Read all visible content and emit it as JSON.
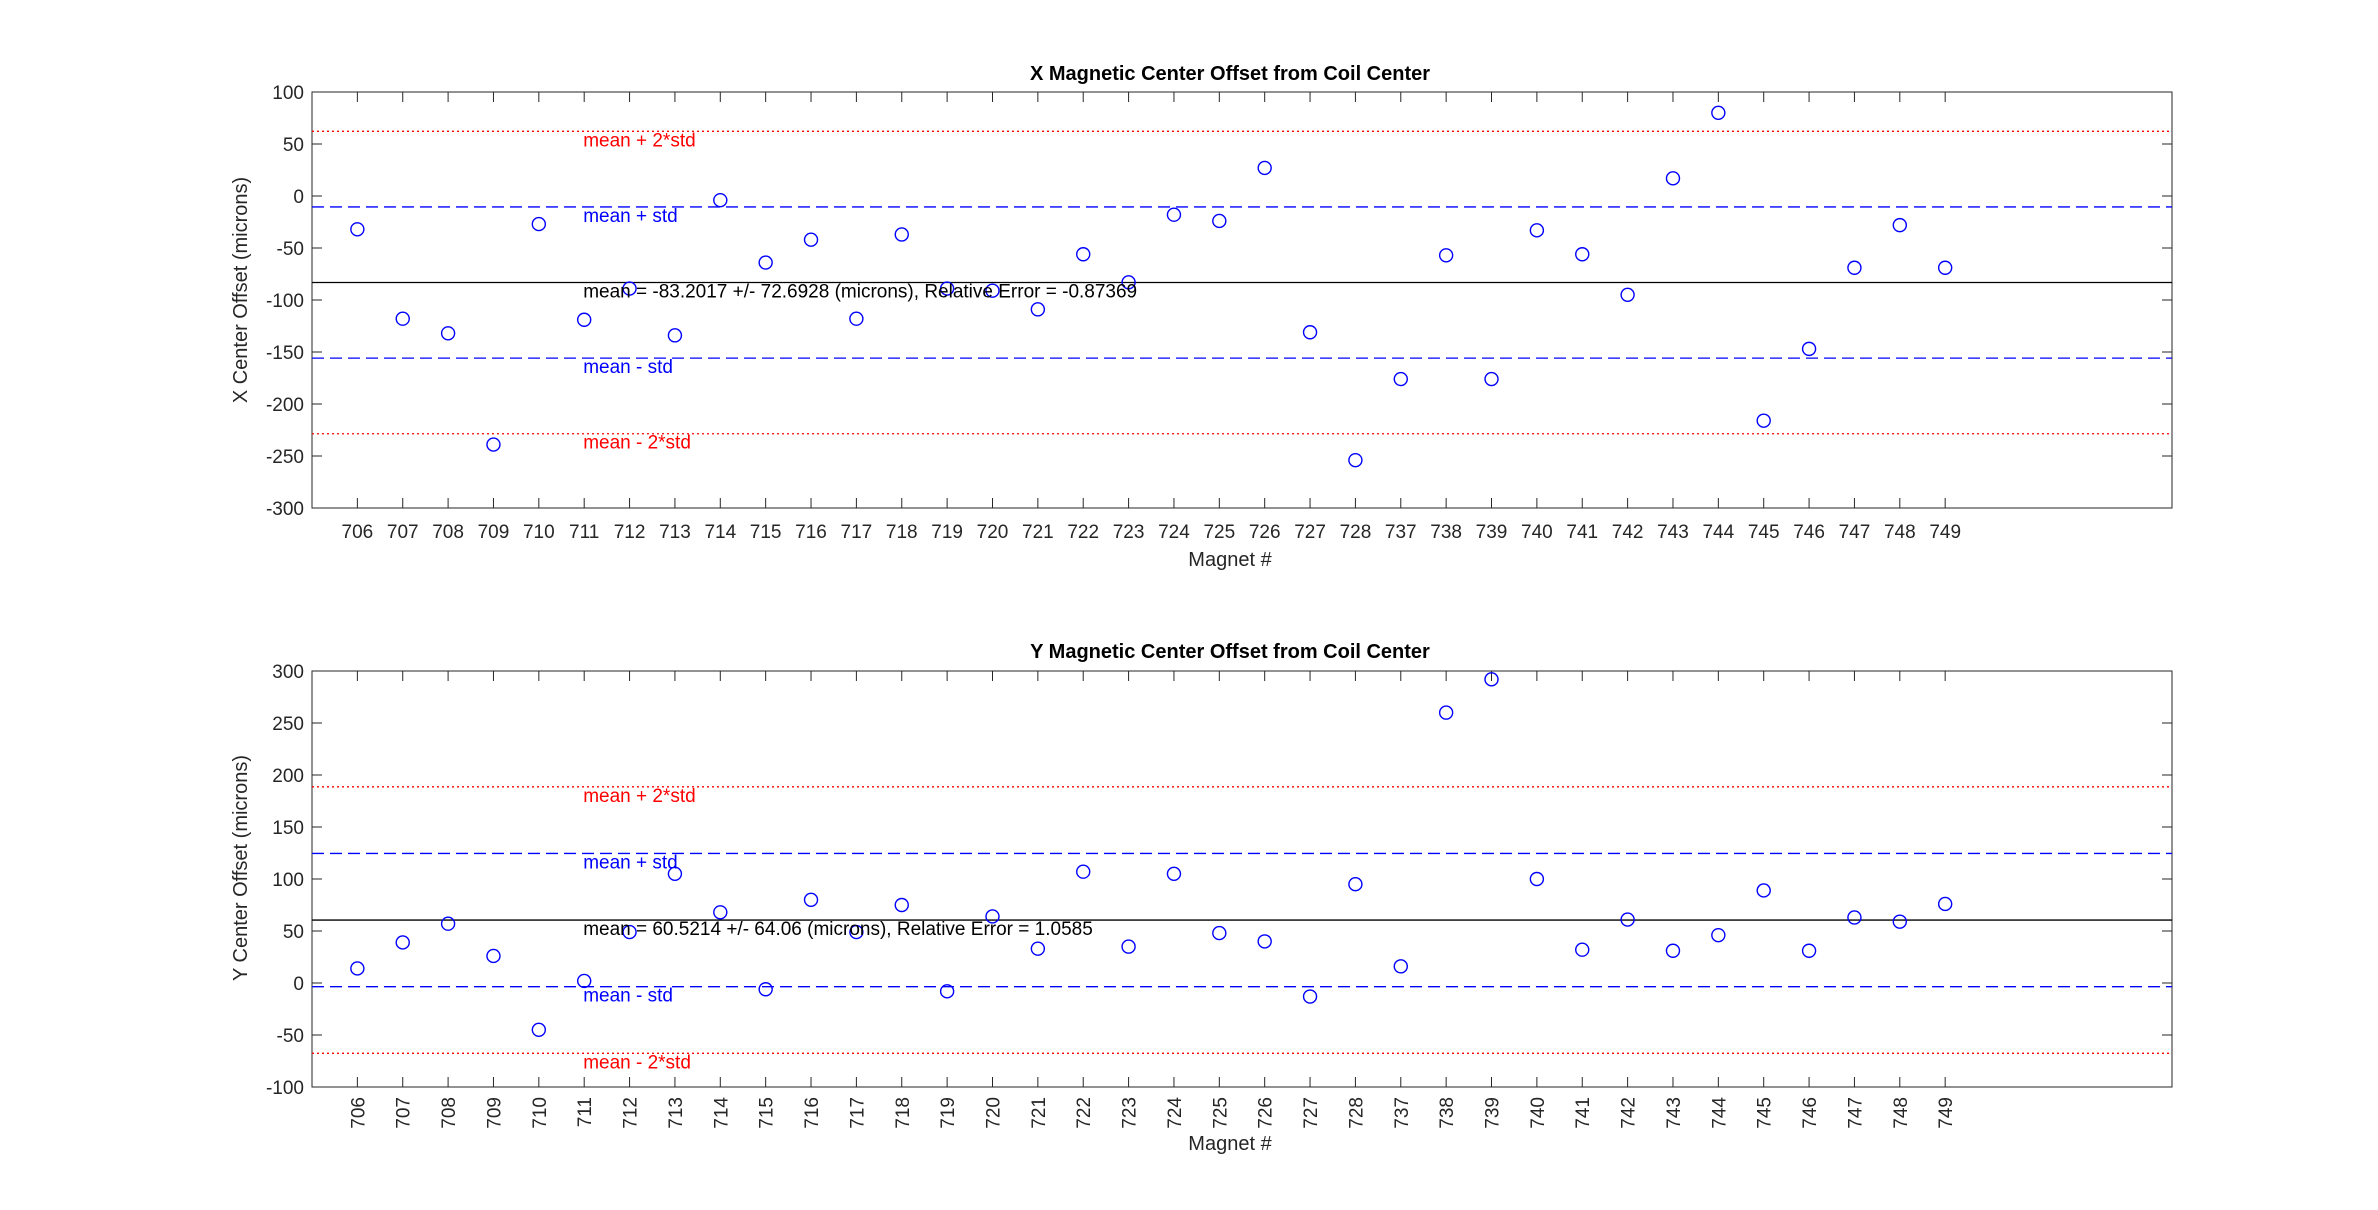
{
  "chart_data": [
    {
      "type": "scatter",
      "title": "X Magnetic Center Offset from Coil Center",
      "xlabel": "Magnet #",
      "ylabel": "X Center Offset (microns)",
      "ylim": [
        -300,
        100
      ],
      "yticks": [
        -300,
        -250,
        -200,
        -150,
        -100,
        -50,
        0,
        50,
        100
      ],
      "xlim": [
        0,
        41
      ],
      "tick_rotation": 0,
      "categories": [
        "706",
        "707",
        "708",
        "709",
        "710",
        "711",
        "712",
        "713",
        "714",
        "715",
        "716",
        "717",
        "718",
        "719",
        "720",
        "721",
        "722",
        "723",
        "724",
        "725",
        "726",
        "727",
        "728",
        "737",
        "738",
        "739",
        "740",
        "741",
        "742",
        "743",
        "744",
        "745",
        "746",
        "747",
        "748",
        "749"
      ],
      "values": [
        -32,
        -118,
        -132,
        -239,
        -27,
        -119,
        -89,
        -134,
        -4,
        -64,
        -42,
        -118,
        -37,
        -89,
        -91,
        -109,
        -56,
        -83,
        -18,
        -24,
        27,
        -131,
        -254,
        -176,
        -57,
        -176,
        -33,
        -56,
        -95,
        17,
        80,
        -216,
        -147,
        -69,
        -28,
        -69
      ],
      "marker_color": "#0000ff",
      "mean": -83.2017,
      "std": 72.6928,
      "reference_lines": [
        {
          "value": 62.1839,
          "label": "mean + 2*std",
          "style": "dotted",
          "color": "#ff0000"
        },
        {
          "value": -10.5089,
          "label": "mean + std",
          "style": "dashed",
          "color": "#0000ff"
        },
        {
          "value": -83.2017,
          "label": "mean = -83.2017 +/- 72.6928 (microns), Relative Error = -0.87369",
          "style": "solid",
          "color": "#000000"
        },
        {
          "value": -155.8945,
          "label": "mean - std",
          "style": "dashed",
          "color": "#0000ff"
        },
        {
          "value": -228.5873,
          "label": "mean - 2*std",
          "style": "dotted",
          "color": "#ff0000"
        }
      ]
    },
    {
      "type": "scatter",
      "title": "Y Magnetic Center Offset from Coil Center",
      "xlabel": "Magnet #",
      "ylabel": "Y Center Offset (microns)",
      "ylim": [
        -100,
        300
      ],
      "yticks": [
        -100,
        -50,
        0,
        50,
        100,
        150,
        200,
        250,
        300
      ],
      "xlim": [
        0,
        41
      ],
      "tick_rotation": -90,
      "categories": [
        "706",
        "707",
        "708",
        "709",
        "710",
        "711",
        "712",
        "713",
        "714",
        "715",
        "716",
        "717",
        "718",
        "719",
        "720",
        "721",
        "722",
        "723",
        "724",
        "725",
        "726",
        "727",
        "728",
        "737",
        "738",
        "739",
        "740",
        "741",
        "742",
        "743",
        "744",
        "745",
        "746",
        "747",
        "748",
        "749"
      ],
      "values": [
        14,
        39,
        57,
        26,
        -45,
        2,
        49,
        105,
        68,
        -6,
        80,
        49,
        75,
        -8,
        64,
        33,
        107,
        35,
        105,
        48,
        40,
        -13,
        95,
        16,
        260,
        292,
        100,
        32,
        61,
        31,
        46,
        89,
        31,
        63,
        59,
        76
      ],
      "marker_color": "#0000ff",
      "mean": 60.5214,
      "std": 64.06,
      "reference_lines": [
        {
          "value": 188.6414,
          "label": "mean + 2*std",
          "style": "dotted",
          "color": "#ff0000"
        },
        {
          "value": 124.5814,
          "label": "mean + std",
          "style": "dashed",
          "color": "#0000ff"
        },
        {
          "value": 60.5214,
          "label": "mean = 60.5214 +/- 64.06 (microns), Relative Error = 1.0585",
          "style": "solid",
          "color": "#000000"
        },
        {
          "value": -3.5386,
          "label": "mean - std",
          "style": "dashed",
          "color": "#0000ff"
        },
        {
          "value": -67.5986,
          "label": "mean - 2*std",
          "style": "dotted",
          "color": "#ff0000"
        }
      ]
    }
  ]
}
